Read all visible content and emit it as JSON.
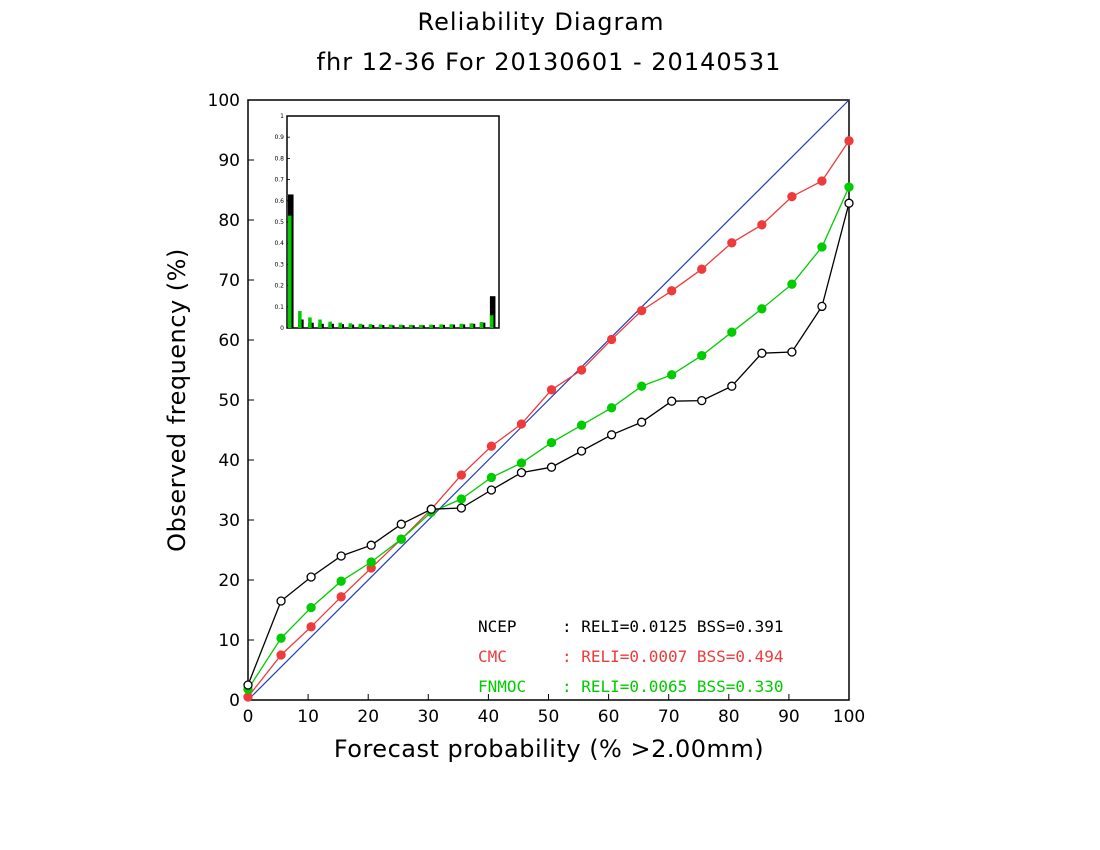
{
  "chart_data": {
    "type": "line",
    "title": "Reliability Diagram",
    "subtitle": "fhr 12-36 For 20130601 - 20140531",
    "xlabel": "Forecast probability (% >2.00mm)",
    "ylabel": "Observed frequency (%)",
    "xlim": [
      0,
      100
    ],
    "ylim": [
      0,
      100
    ],
    "xticks": [
      "0",
      "10",
      "20",
      "30",
      "40",
      "50",
      "60",
      "70",
      "80",
      "90",
      "100"
    ],
    "yticks": [
      "0",
      "10",
      "20",
      "30",
      "40",
      "50",
      "60",
      "70",
      "80",
      "90",
      "100"
    ],
    "grid": false,
    "legend_position": "bottom-right",
    "colors": {
      "NCEP": "#000000",
      "CMC": "#ee3b3b",
      "FNMOC": "#00cc00",
      "diagonal": "#1f3fbf"
    },
    "x": [
      0,
      5.5,
      10.5,
      15.5,
      20.5,
      25.5,
      30.5,
      35.5,
      40.5,
      45.5,
      50.5,
      55.5,
      60.5,
      65.5,
      70.5,
      75.5,
      80.5,
      85.5,
      90.5,
      95.5,
      100
    ],
    "series": [
      {
        "name": "NCEP",
        "marker": "open-circle",
        "values": [
          2.5,
          16.5,
          20.5,
          24,
          25.8,
          29.3,
          31.8,
          32,
          35,
          37.9,
          38.8,
          41.5,
          44.2,
          46.3,
          49.8,
          49.9,
          52.3,
          57.8,
          58,
          65.6,
          82.8
        ],
        "stats": ": RELI=0.0125 BSS=0.391"
      },
      {
        "name": "CMC",
        "marker": "filled-circle",
        "values": [
          0.5,
          7.5,
          12.2,
          17.2,
          22,
          26.8,
          31.8,
          37.5,
          42.3,
          46,
          51.7,
          55,
          60.1,
          64.9,
          68.2,
          71.8,
          76.2,
          79.2,
          83.9,
          86.5,
          93.2
        ],
        "stats": ": RELI=0.0007 BSS=0.494"
      },
      {
        "name": "FNMOC",
        "marker": "filled-circle",
        "values": [
          1.8,
          10.3,
          15.4,
          19.8,
          23,
          26.8,
          31.3,
          33.5,
          37.1,
          39.5,
          42.9,
          45.8,
          48.7,
          52.3,
          54.2,
          57.4,
          61.3,
          65.2,
          69.3,
          75.5,
          85.5
        ],
        "stats": ": RELI=0.0065 BSS=0.330"
      }
    ],
    "inset": {
      "type": "bar",
      "description_none": "",
      "ylim": [
        0,
        1
      ],
      "yticks": [
        "0",
        "0.1",
        "0.2",
        "0.3",
        "0.4",
        "0.5",
        "0.6",
        "0.7",
        "0.8",
        "0.9",
        "1"
      ],
      "bins": 21,
      "NCEP": [
        0.63,
        0.04,
        0.025,
        0.02,
        0.02,
        0.018,
        0.016,
        0.015,
        0.014,
        0.014,
        0.013,
        0.013,
        0.013,
        0.013,
        0.014,
        0.015,
        0.016,
        0.017,
        0.02,
        0.025,
        0.15
      ],
      "FNMOC": [
        0.53,
        0.08,
        0.05,
        0.04,
        0.03,
        0.025,
        0.022,
        0.02,
        0.018,
        0.017,
        0.016,
        0.016,
        0.015,
        0.015,
        0.016,
        0.017,
        0.018,
        0.02,
        0.022,
        0.028,
        0.06
      ]
    }
  }
}
